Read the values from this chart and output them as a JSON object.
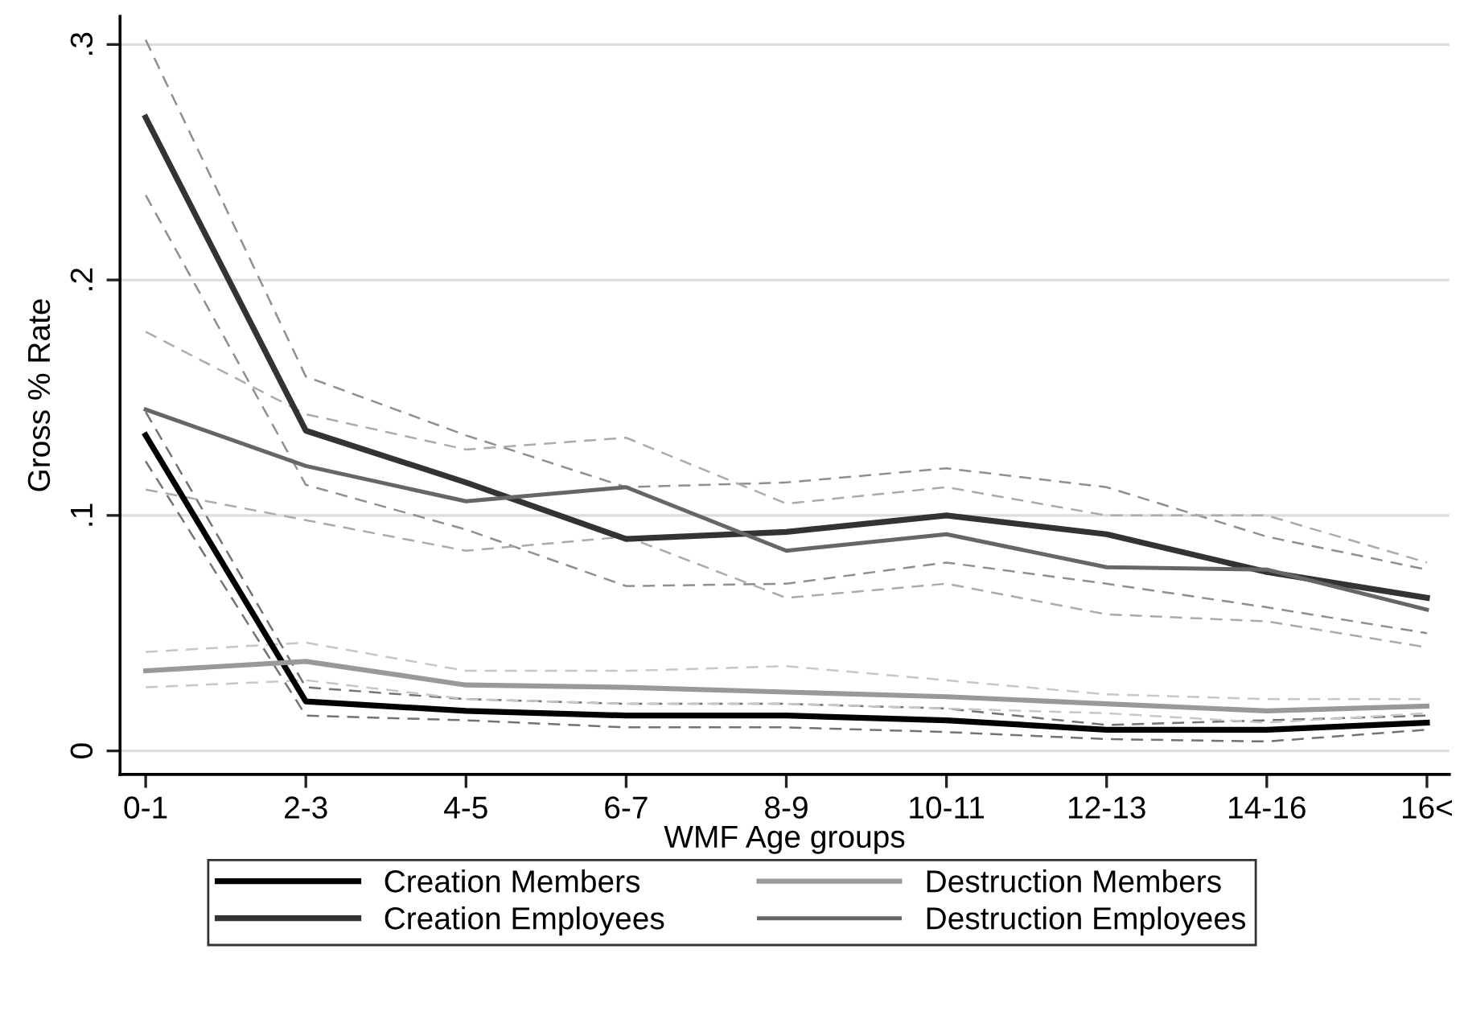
{
  "chart_data": {
    "type": "line",
    "xlabel": "WMF Age groups",
    "ylabel": "Gross % Rate",
    "categories": [
      "0-1",
      "2-3",
      "4-5",
      "6-7",
      "8-9",
      "10-11",
      "12-13",
      "14-16",
      "16<"
    ],
    "series": [
      {
        "color": "#737373",
        "line_style": "dashed",
        "values": [
          0.123,
          0.015,
          0.013,
          0.01,
          0.01,
          0.008,
          0.005,
          0.004,
          0.009
        ]
      },
      {
        "color": "#737373",
        "line_style": "dashed",
        "values": [
          0.144,
          0.027,
          0.022,
          0.02,
          0.02,
          0.018,
          0.011,
          0.013,
          0.015
        ]
      },
      {
        "color": "#8f8f8f",
        "line_style": "dashed",
        "values": [
          0.236,
          0.113,
          0.094,
          0.07,
          0.071,
          0.08,
          0.071,
          0.061,
          0.05
        ]
      },
      {
        "color": "#8f8f8f",
        "line_style": "dashed",
        "values": [
          0.302,
          0.159,
          0.134,
          0.112,
          0.114,
          0.12,
          0.112,
          0.091,
          0.077
        ]
      },
      {
        "color": "#c7c7c7",
        "line_style": "dashed",
        "values": [
          0.027,
          0.03,
          0.022,
          0.02,
          0.02,
          0.018,
          0.016,
          0.012,
          0.016
        ]
      },
      {
        "color": "#c7c7c7",
        "line_style": "dashed",
        "values": [
          0.042,
          0.046,
          0.034,
          0.034,
          0.036,
          0.03,
          0.024,
          0.022,
          0.022
        ]
      },
      {
        "color": "#ababab",
        "line_style": "dashed",
        "values": [
          0.111,
          0.098,
          0.085,
          0.091,
          0.065,
          0.071,
          0.058,
          0.055,
          0.044
        ]
      },
      {
        "color": "#ababab",
        "line_style": "dashed",
        "values": [
          0.178,
          0.143,
          0.128,
          0.133,
          0.105,
          0.112,
          0.1,
          0.1,
          0.08
        ]
      },
      {
        "name": "Creation Members",
        "color": "#000000",
        "values": [
          0.134,
          0.021,
          0.017,
          0.015,
          0.015,
          0.013,
          0.009,
          0.009,
          0.012
        ]
      },
      {
        "name": "Creation Employees",
        "color": "#333333",
        "values": [
          0.269,
          0.136,
          0.114,
          0.09,
          0.093,
          0.1,
          0.092,
          0.076,
          0.065
        ]
      },
      {
        "name": "Destruction Members",
        "color": "#999999",
        "values": [
          0.034,
          0.038,
          0.028,
          0.027,
          0.025,
          0.023,
          0.02,
          0.017,
          0.019
        ]
      },
      {
        "name": "Destruction Employees",
        "color": "#666666",
        "values": [
          0.145,
          0.121,
          0.106,
          0.112,
          0.085,
          0.092,
          0.078,
          0.077,
          0.06
        ]
      }
    ],
    "ylim": [
      -0.01,
      0.312
    ],
    "yticks": [
      0,
      {
        "value": 0.1,
        "label": ".1"
      },
      {
        "value": 0.2,
        "label": ".2"
      },
      {
        "value": 0.3,
        "label": ".3"
      }
    ],
    "grid": "y",
    "legend": "bottom",
    "marker": "none",
    "line_style": "solid"
  }
}
